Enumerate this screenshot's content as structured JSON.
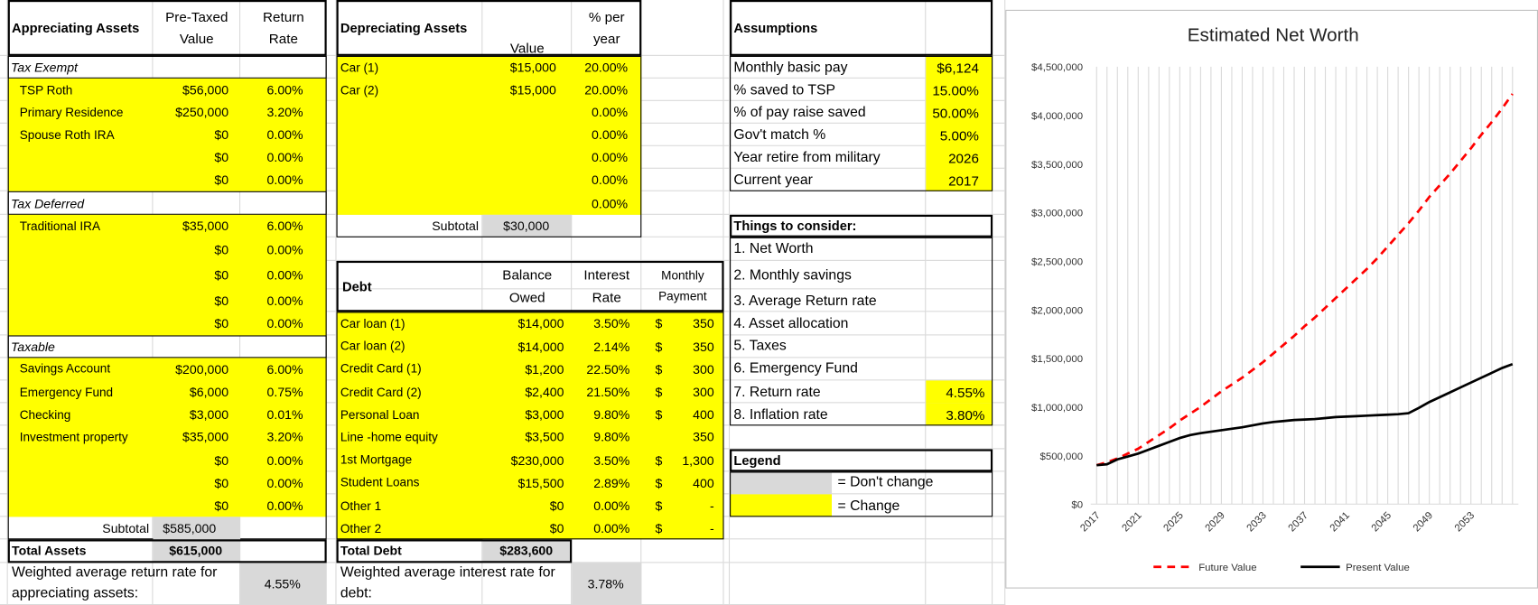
{
  "appreciating": {
    "headers": [
      "Appreciating Assets",
      "Pre-Taxed Value",
      "Return Rate"
    ],
    "groups": [
      {
        "name": "Tax Exempt",
        "rows": [
          {
            "label": "TSP Roth",
            "value": "$56,000",
            "rate": "6.00%"
          },
          {
            "label": "Primary Residence",
            "value": "$250,000",
            "rate": "3.20%"
          },
          {
            "label": "Spouse Roth IRA",
            "value": "$0",
            "rate": "0.00%"
          },
          {
            "value": "$0",
            "rate": "0.00%"
          },
          {
            "value": "$0",
            "rate": "0.00%"
          }
        ]
      },
      {
        "name": "Tax Deferred",
        "rows": [
          {
            "label": "Traditional IRA",
            "value": "$35,000",
            "rate": "6.00%"
          },
          {
            "value": "$0",
            "rate": "0.00%"
          },
          {
            "value": "$0",
            "rate": "0.00%"
          },
          {
            "value": "$0",
            "rate": "0.00%"
          },
          {
            "value": "$0",
            "rate": "0.00%"
          }
        ]
      },
      {
        "name": "Taxable",
        "rows": [
          {
            "label": "Savings Account",
            "value": "$200,000",
            "rate": "6.00%"
          },
          {
            "label": "Emergency Fund",
            "value": "$6,000",
            "rate": "0.75%"
          },
          {
            "label": "Checking",
            "value": "$3,000",
            "rate": "0.01%"
          },
          {
            "label": "Investment property",
            "value": "$35,000",
            "rate": "3.20%"
          },
          {
            "value": "$0",
            "rate": "0.00%"
          },
          {
            "value": "$0",
            "rate": "0.00%"
          },
          {
            "value": "$0",
            "rate": "0.00%"
          }
        ]
      }
    ],
    "subtotal": {
      "label": "Subtotal",
      "value": "$585,000"
    },
    "total": {
      "label": "Total Assets",
      "value": "$615,000"
    },
    "weighted": {
      "label": "Weighted average return rate for appreciating assets:",
      "value": "4.55%"
    }
  },
  "depreciating": {
    "headers": [
      "Depreciating Assets",
      "Value",
      "% per year"
    ],
    "rows": [
      {
        "label": "Car (1)",
        "value": "$15,000",
        "rate": "20.00%"
      },
      {
        "label": "Car (2)",
        "value": "$15,000",
        "rate": "20.00%"
      },
      {
        "rate": "0.00%"
      },
      {
        "rate": "0.00%"
      },
      {
        "rate": "0.00%"
      },
      {
        "rate": "0.00%"
      },
      {
        "rate": "0.00%"
      }
    ],
    "subtotal": {
      "label": "Subtotal",
      "value": "$30,000"
    }
  },
  "debt": {
    "headers": [
      "Debt",
      "Balance Owed",
      "Interest Rate",
      "Monthly Payment"
    ],
    "rows": [
      {
        "label": "Car loan (1)",
        "balance": "$14,000",
        "rate": "3.50%",
        "currency": "$",
        "payment": "350"
      },
      {
        "label": "Car loan (2)",
        "balance": "$14,000",
        "rate": "2.14%",
        "currency": "$",
        "payment": "350"
      },
      {
        "label": "Credit Card (1)",
        "balance": "$1,200",
        "rate": "22.50%",
        "currency": "$",
        "payment": "300"
      },
      {
        "label": "Credit Card (2)",
        "balance": "$2,400",
        "rate": "21.50%",
        "currency": "$",
        "payment": "300"
      },
      {
        "label": "Personal Loan",
        "balance": "$3,000",
        "rate": "9.80%",
        "currency": "$",
        "payment": "400"
      },
      {
        "label": "Line -home equity",
        "balance": "$3,500",
        "rate": "9.80%",
        "payment": "350"
      },
      {
        "label": "1st Mortgage",
        "balance": "$230,000",
        "rate": "3.50%",
        "currency": "$",
        "payment": "1,300"
      },
      {
        "label": "Student Loans",
        "balance": "$15,500",
        "rate": "2.89%",
        "currency": "$",
        "payment": "400"
      },
      {
        "label": "Other 1",
        "balance": "$0",
        "rate": "0.00%",
        "currency": "$",
        "payment": "-"
      },
      {
        "label": "Other 2",
        "balance": "$0",
        "rate": "0.00%",
        "currency": "$",
        "payment": "-"
      }
    ],
    "total": {
      "label": "Total Debt",
      "value": "$283,600"
    },
    "weighted": {
      "label": "Weighted average interest rate for debt:",
      "value": "3.78%"
    }
  },
  "assumptions": {
    "header": "Assumptions",
    "rows": [
      {
        "label": "Monthly basic pay",
        "value": "$6,124"
      },
      {
        "label": "% saved to TSP",
        "value": "15.00%"
      },
      {
        "label": "% of pay raise saved",
        "value": "50.00%"
      },
      {
        "label": "Gov't match %",
        "value": "5.00%"
      },
      {
        "label": "Year retire from military",
        "value": "2026"
      },
      {
        "label": "Current year",
        "value": "2017"
      }
    ]
  },
  "considerations": {
    "header": "Things to consider:",
    "items": [
      {
        "label": "1. Net Worth"
      },
      {
        "label": "2. Monthly savings"
      },
      {
        "label": "3. Average Return rate"
      },
      {
        "label": "4. Asset allocation"
      },
      {
        "label": "5. Taxes"
      },
      {
        "label": "6. Emergency Fund"
      },
      {
        "label": "7. Return rate",
        "value": "4.55%"
      },
      {
        "label": "8. Inflation rate",
        "value": "3.80%"
      }
    ]
  },
  "legend": {
    "header": "Legend",
    "items": [
      {
        "label": "= Don't change",
        "color": "#d9d9d9"
      },
      {
        "label": "= Change",
        "color": "#ffff00"
      }
    ]
  },
  "chart_data": {
    "type": "line",
    "title": "Estimated Net Worth",
    "x": [
      2017,
      2018,
      2019,
      2020,
      2021,
      2022,
      2023,
      2024,
      2025,
      2026,
      2027,
      2028,
      2029,
      2030,
      2031,
      2032,
      2033,
      2034,
      2035,
      2036,
      2037,
      2038,
      2039,
      2040,
      2041,
      2042,
      2043,
      2044,
      2045,
      2046,
      2047,
      2048,
      2049,
      2050,
      2051,
      2052,
      2053,
      2054,
      2055,
      2056,
      2057
    ],
    "xlim": [
      2017,
      2057
    ],
    "xticks": [
      2017,
      2021,
      2025,
      2029,
      2033,
      2037,
      2041,
      2045,
      2049,
      2053
    ],
    "ylim": [
      0,
      4500000
    ],
    "yticks": [
      {
        "value": 0,
        "label": "$0"
      },
      {
        "value": 500000,
        "label": "$500,000"
      },
      {
        "value": 1000000,
        "label": "$1,000,000"
      },
      {
        "value": 1500000,
        "label": "$1,500,000"
      },
      {
        "value": 2000000,
        "label": "$2,000,000"
      },
      {
        "value": 2500000,
        "label": "$2,500,000"
      },
      {
        "value": 3000000,
        "label": "$3,000,000"
      },
      {
        "value": 3500000,
        "label": "$3,500,000"
      },
      {
        "value": 4000000,
        "label": "$4,000,000"
      },
      {
        "value": 4500000,
        "label": "$4,500,000"
      }
    ],
    "grid": true,
    "series": [
      {
        "name": "Future Value",
        "color": "#ff0000",
        "style": "dashed",
        "values": [
          400000,
          430000,
          470000,
          520000,
          570000,
          640000,
          710000,
          780000,
          860000,
          930000,
          1000000,
          1080000,
          1160000,
          1230000,
          1300000,
          1380000,
          1460000,
          1550000,
          1640000,
          1730000,
          1830000,
          1920000,
          2020000,
          2120000,
          2220000,
          2320000,
          2420000,
          2530000,
          2650000,
          2770000,
          2890000,
          3020000,
          3160000,
          3280000,
          3400000,
          3530000,
          3660000,
          3800000,
          3930000,
          4070000,
          4220000
        ]
      },
      {
        "name": "Present Value",
        "color": "#000000",
        "style": "solid",
        "values": [
          400000,
          410000,
          460000,
          490000,
          520000,
          560000,
          600000,
          640000,
          680000,
          710000,
          730000,
          745000,
          760000,
          775000,
          790000,
          810000,
          830000,
          845000,
          855000,
          865000,
          870000,
          875000,
          885000,
          895000,
          900000,
          905000,
          910000,
          915000,
          920000,
          925000,
          935000,
          990000,
          1050000,
          1100000,
          1150000,
          1200000,
          1250000,
          1300000,
          1350000,
          1400000,
          1440000
        ]
      }
    ]
  }
}
